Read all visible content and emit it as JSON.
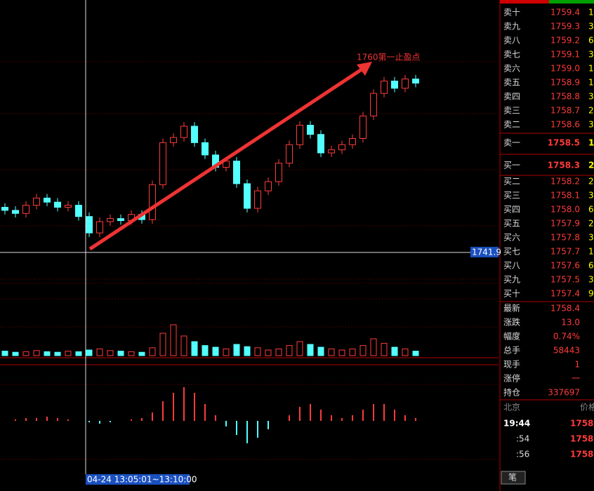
{
  "chart_data": {
    "type": "candlestick",
    "annotation": "1760第一止盈点",
    "crosshair_price": 1741.9,
    "time_label": "04-24 13:05:01~13:10:00",
    "ylim": [
      1739.5,
      1766.5
    ],
    "volume_lim": [
      0,
      100
    ],
    "macd_lim": [
      -2.25,
      2.0
    ],
    "open": [
      1746.3,
      1746.0,
      1745.7,
      1746.5,
      1747.2,
      1746.8,
      1746.3,
      1746.5,
      1745.4,
      1743.8,
      1744.9,
      1745.2,
      1745.0,
      1745.6,
      1745.1,
      1748.5,
      1752.6,
      1753.1,
      1754.2,
      1752.6,
      1751.4,
      1750.2,
      1750.8,
      1748.6,
      1746.2,
      1747.9,
      1748.8,
      1750.6,
      1752.4,
      1754.3,
      1753.4,
      1751.6,
      1751.9,
      1752.4,
      1753.0,
      1755.2,
      1757.4,
      1758.6,
      1757.9,
      1758.8
    ],
    "high": [
      1746.7,
      1746.4,
      1746.9,
      1747.6,
      1747.6,
      1747.2,
      1746.9,
      1746.9,
      1745.8,
      1745.3,
      1745.6,
      1745.6,
      1746.0,
      1746.0,
      1748.9,
      1753.0,
      1753.5,
      1754.6,
      1754.6,
      1753.0,
      1751.8,
      1751.2,
      1751.2,
      1749.0,
      1748.3,
      1749.2,
      1751.0,
      1752.8,
      1754.7,
      1754.7,
      1753.8,
      1752.3,
      1752.8,
      1753.4,
      1755.6,
      1757.8,
      1759.0,
      1759.0,
      1759.2,
      1759.2
    ],
    "low": [
      1745.6,
      1745.3,
      1745.3,
      1746.1,
      1746.4,
      1745.9,
      1745.9,
      1745.0,
      1743.4,
      1743.4,
      1744.5,
      1744.6,
      1744.6,
      1744.7,
      1744.7,
      1748.1,
      1752.2,
      1752.7,
      1752.2,
      1751.0,
      1749.8,
      1749.8,
      1748.2,
      1745.8,
      1745.8,
      1747.5,
      1748.4,
      1750.2,
      1752.0,
      1753.0,
      1751.2,
      1751.2,
      1751.5,
      1752.0,
      1752.6,
      1754.8,
      1757.0,
      1757.5,
      1757.5,
      1758.0
    ],
    "close": [
      1746.0,
      1745.7,
      1746.5,
      1747.2,
      1746.8,
      1746.3,
      1746.5,
      1745.4,
      1743.8,
      1744.9,
      1745.2,
      1745.0,
      1745.6,
      1745.1,
      1748.5,
      1752.6,
      1753.1,
      1754.2,
      1752.6,
      1751.4,
      1750.2,
      1750.8,
      1748.6,
      1746.2,
      1747.9,
      1748.8,
      1750.6,
      1752.4,
      1754.3,
      1753.4,
      1751.6,
      1751.9,
      1752.4,
      1753.0,
      1755.2,
      1757.4,
      1758.6,
      1757.9,
      1758.8,
      1758.4
    ],
    "volume": [
      8,
      6,
      7,
      9,
      7,
      6,
      8,
      7,
      10,
      12,
      9,
      8,
      7,
      6,
      14,
      40,
      55,
      35,
      25,
      18,
      15,
      12,
      20,
      16,
      14,
      10,
      12,
      18,
      25,
      20,
      15,
      12,
      10,
      12,
      18,
      30,
      22,
      15,
      12,
      8
    ],
    "macd": [
      0,
      0.05,
      0.1,
      0.1,
      0.15,
      0.1,
      0.05,
      0,
      -0.05,
      -0.1,
      -0.05,
      0,
      0.05,
      0.1,
      0.3,
      0.7,
      1.0,
      1.2,
      1.0,
      0.6,
      0.2,
      -0.2,
      -0.5,
      -0.8,
      -0.6,
      -0.3,
      0,
      0.2,
      0.5,
      0.6,
      0.4,
      0.2,
      0.1,
      0.2,
      0.4,
      0.6,
      0.6,
      0.4,
      0.2,
      0.1
    ]
  },
  "order_book": {
    "sell": [
      [
        "卖十",
        "1759.4",
        "1"
      ],
      [
        "卖九",
        "1759.3",
        "3"
      ],
      [
        "卖八",
        "1759.2",
        "6"
      ],
      [
        "卖七",
        "1759.1",
        "3"
      ],
      [
        "卖六",
        "1759.0",
        "1"
      ],
      [
        "卖五",
        "1758.9",
        "1"
      ],
      [
        "卖四",
        "1758.8",
        "3"
      ],
      [
        "卖三",
        "1758.7",
        "2"
      ],
      [
        "卖二",
        "1758.6",
        "3"
      ],
      [
        "卖一",
        "1758.5",
        "1"
      ]
    ],
    "buy": [
      [
        "买一",
        "1758.3",
        "2"
      ],
      [
        "买二",
        "1758.2",
        "2"
      ],
      [
        "买三",
        "1758.1",
        "3"
      ],
      [
        "买四",
        "1758.0",
        "6"
      ],
      [
        "买五",
        "1757.9",
        "2"
      ],
      [
        "买六",
        "1757.8",
        "3"
      ],
      [
        "买七",
        "1757.7",
        "1"
      ],
      [
        "买八",
        "1757.6",
        "6"
      ],
      [
        "买九",
        "1757.5",
        "3"
      ],
      [
        "买十",
        "1757.4",
        "9"
      ]
    ]
  },
  "quote": [
    [
      "最新",
      "1758.4"
    ],
    [
      "涨跌",
      "13.0"
    ],
    [
      "幅度",
      "0.74%"
    ],
    [
      "总手",
      "58443"
    ],
    [
      "现手",
      "1"
    ],
    [
      "涨停",
      "一"
    ],
    [
      "持仓",
      "337697"
    ]
  ],
  "ticks": {
    "header": [
      "北京",
      "价格"
    ],
    "rows": [
      [
        "19:44",
        "1758."
      ],
      [
        ":54",
        "1758."
      ],
      [
        ":56",
        "1758."
      ]
    ],
    "tab": "笔"
  }
}
